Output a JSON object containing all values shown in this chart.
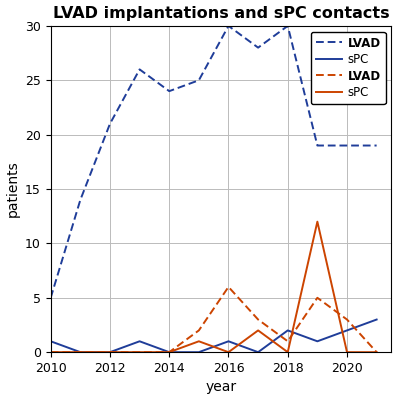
{
  "title": "LVAD implantations and sPC contacts",
  "xlabel": "year",
  "ylabel": "patients",
  "ylim": [
    0,
    30
  ],
  "xlim": [
    2010,
    2021.5
  ],
  "blue_dashed_label": "LVAD",
  "blue_solid_label": "sPC",
  "orange_dashed_label": "LVAD",
  "orange_solid_label": "sPC",
  "blue_dashed_x": [
    2010,
    2011,
    2012,
    2013,
    2014,
    2015,
    2016,
    2017,
    2018,
    2019,
    2020,
    2021
  ],
  "blue_dashed_y": [
    5,
    14,
    21,
    26,
    24,
    25,
    30,
    28,
    30,
    19,
    19,
    19
  ],
  "blue_solid_x": [
    2010,
    2011,
    2012,
    2013,
    2014,
    2015,
    2016,
    2017,
    2018,
    2019,
    2020,
    2021
  ],
  "blue_solid_y": [
    1,
    0,
    0,
    1,
    0,
    0,
    1,
    0,
    2,
    1,
    2,
    3
  ],
  "orange_dashed_x": [
    2010,
    2011,
    2012,
    2013,
    2014,
    2015,
    2016,
    2017,
    2018,
    2019,
    2020,
    2021
  ],
  "orange_dashed_y": [
    0,
    0,
    0,
    0,
    0,
    2,
    6,
    3,
    1,
    5,
    3,
    0
  ],
  "orange_solid_x": [
    2010,
    2011,
    2012,
    2013,
    2014,
    2015,
    2016,
    2017,
    2018,
    2019,
    2020,
    2021
  ],
  "orange_solid_y": [
    0,
    0,
    0,
    0,
    0,
    1,
    0,
    2,
    0,
    12,
    0,
    0
  ],
  "blue_color": "#1f3d99",
  "orange_color": "#cc4400",
  "bg_color": "#ffffff",
  "grid_color": "#bbbbbb",
  "yticks": [
    0,
    5,
    10,
    15,
    20,
    25,
    30
  ],
  "xticks": [
    2010,
    2012,
    2014,
    2016,
    2018,
    2020
  ]
}
